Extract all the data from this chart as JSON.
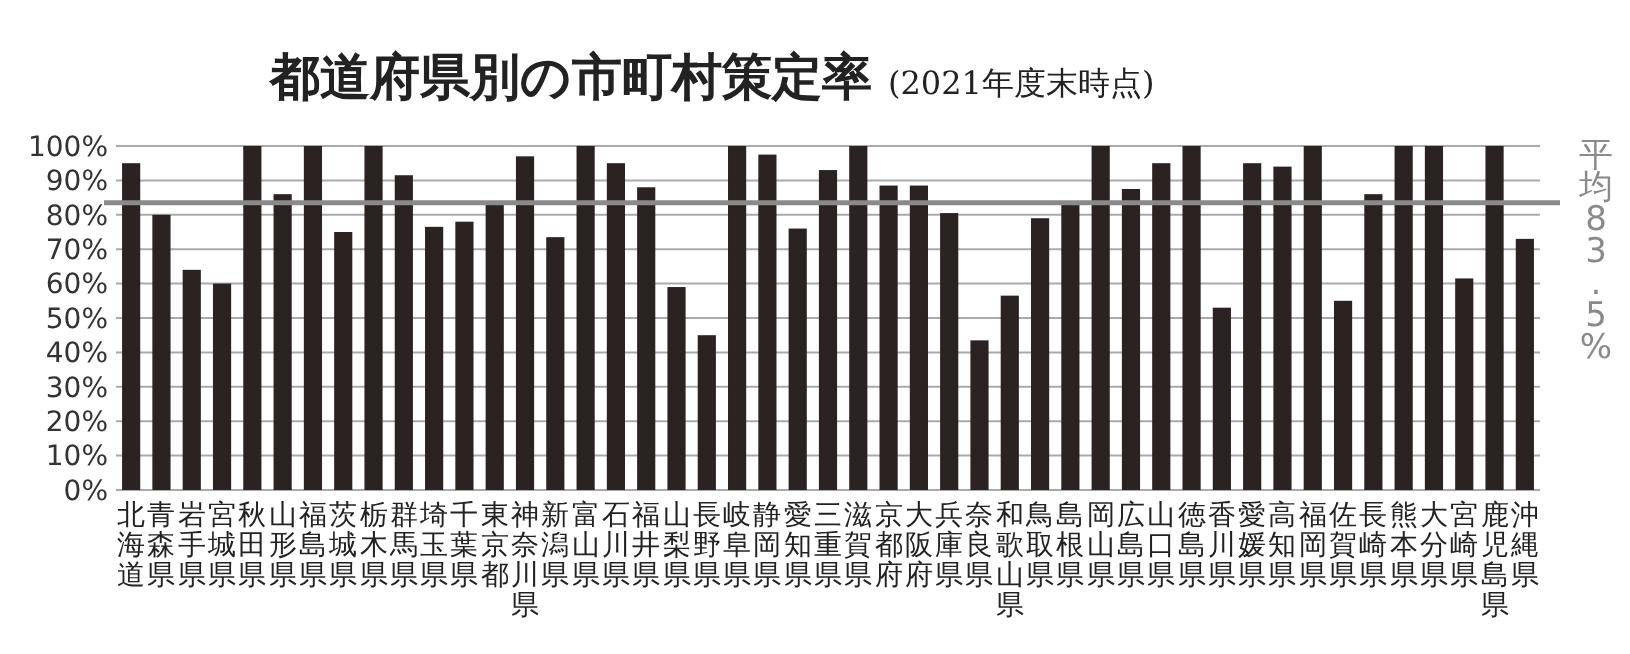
{
  "chart_data": {
    "type": "bar",
    "title": "都道府県別の市町村策定率",
    "subtitle": "(2021年度末時点)",
    "categories": [
      "北海道",
      "青森県",
      "岩手県",
      "宮城県",
      "秋田県",
      "山形県",
      "福島県",
      "茨城県",
      "栃木県",
      "群馬県",
      "埼玉県",
      "千葉県",
      "東京都",
      "神奈川県",
      "新潟県",
      "富山県",
      "石川県",
      "福井県",
      "山梨県",
      "長野県",
      "岐阜県",
      "静岡県",
      "愛知県",
      "三重県",
      "滋賀県",
      "京都府",
      "大阪府",
      "兵庫県",
      "奈良県",
      "和歌山県",
      "鳥取県",
      "島根県",
      "岡山県",
      "広島県",
      "山口県",
      "徳島県",
      "香川県",
      "愛媛県",
      "高知県",
      "福岡県",
      "佐賀県",
      "長崎県",
      "熊本県",
      "大分県",
      "宮崎県",
      "鹿児島県",
      "沖縄県"
    ],
    "values": [
      95,
      80,
      64,
      60,
      100,
      86,
      100,
      75,
      100,
      91.5,
      76.5,
      78,
      84,
      97,
      73.5,
      100,
      95,
      88,
      59,
      45,
      100,
      97.5,
      76,
      93,
      100,
      88.5,
      88.5,
      80.5,
      43.5,
      56.5,
      79,
      84,
      100,
      87.5,
      95,
      100,
      53,
      95,
      94,
      100,
      55,
      86,
      100,
      100,
      61.5,
      100,
      73
    ],
    "color": "#2b2222",
    "ylim": [
      0,
      100
    ],
    "yticks": [
      {
        "value": 0,
        "label": "0%"
      },
      {
        "value": 10,
        "label": "10%"
      },
      {
        "value": 20,
        "label": "20%"
      },
      {
        "value": 30,
        "label": "30%"
      },
      {
        "value": 40,
        "label": "40%"
      },
      {
        "value": 50,
        "label": "50%"
      },
      {
        "value": 60,
        "label": "60%"
      },
      {
        "value": 70,
        "label": "70%"
      },
      {
        "value": 80,
        "label": "80%"
      },
      {
        "value": 90,
        "label": "90%"
      },
      {
        "value": 100,
        "label": "100%"
      }
    ],
    "grid": "y",
    "ref_lines": [
      {
        "axis": "y",
        "value": 83.5,
        "label": "平均83.5%",
        "color": "#8a8a8a"
      }
    ]
  }
}
